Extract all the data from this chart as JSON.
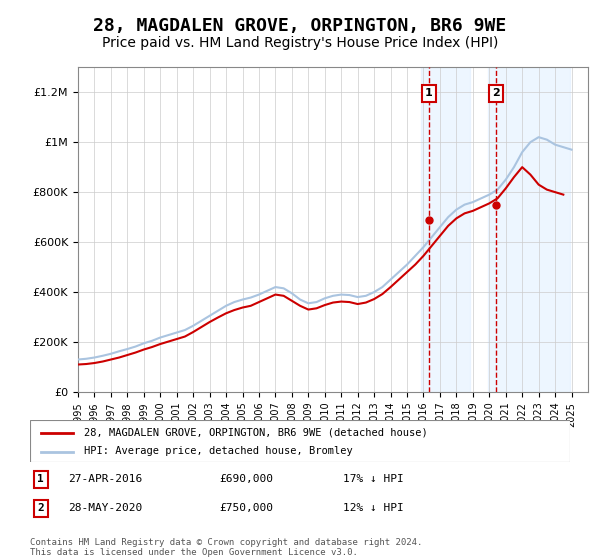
{
  "title": "28, MAGDALEN GROVE, ORPINGTON, BR6 9WE",
  "subtitle": "Price paid vs. HM Land Registry's House Price Index (HPI)",
  "title_fontsize": 13,
  "subtitle_fontsize": 10,
  "ylabel_fontsize": 9,
  "xlabel_fontsize": 8,
  "background_color": "#ffffff",
  "plot_bg_color": "#ffffff",
  "grid_color": "#cccccc",
  "hpi_color": "#aac4e0",
  "price_color": "#cc0000",
  "vline_color": "#cc0000",
  "shade_color": "#ddeeff",
  "ylim": [
    0,
    1300000
  ],
  "xlim_start": 1995,
  "xlim_end": 2026,
  "yticks": [
    0,
    200000,
    400000,
    600000,
    800000,
    1000000,
    1200000
  ],
  "ytick_labels": [
    "£0",
    "£200K",
    "£400K",
    "£600K",
    "£800K",
    "£1M",
    "£1.2M"
  ],
  "xticks": [
    1995,
    1996,
    1997,
    1998,
    1999,
    2000,
    2001,
    2002,
    2003,
    2004,
    2005,
    2006,
    2007,
    2008,
    2009,
    2010,
    2011,
    2012,
    2013,
    2014,
    2015,
    2016,
    2017,
    2018,
    2019,
    2020,
    2021,
    2022,
    2023,
    2024,
    2025
  ],
  "transaction1_x": 2016.32,
  "transaction1_y": 690000,
  "transaction1_label": "1",
  "transaction2_x": 2020.41,
  "transaction2_y": 750000,
  "transaction2_label": "2",
  "legend_line1": "28, MAGDALEN GROVE, ORPINGTON, BR6 9WE (detached house)",
  "legend_line2": "HPI: Average price, detached house, Bromley",
  "table_row1": [
    "1",
    "27-APR-2016",
    "£690,000",
    "17% ↓ HPI"
  ],
  "table_row2": [
    "2",
    "28-MAY-2020",
    "£750,000",
    "12% ↓ HPI"
  ],
  "footnote": "Contains HM Land Registry data © Crown copyright and database right 2024.\nThis data is licensed under the Open Government Licence v3.0.",
  "hpi_years": [
    1995.0,
    1995.5,
    1996.0,
    1996.5,
    1997.0,
    1997.5,
    1998.0,
    1998.5,
    1999.0,
    1999.5,
    2000.0,
    2000.5,
    2001.0,
    2001.5,
    2002.0,
    2002.5,
    2003.0,
    2003.5,
    2004.0,
    2004.5,
    2005.0,
    2005.5,
    2006.0,
    2006.5,
    2007.0,
    2007.5,
    2008.0,
    2008.5,
    2009.0,
    2009.5,
    2010.0,
    2010.5,
    2011.0,
    2011.5,
    2012.0,
    2012.5,
    2013.0,
    2013.5,
    2014.0,
    2014.5,
    2015.0,
    2015.5,
    2016.0,
    2016.5,
    2017.0,
    2017.5,
    2018.0,
    2018.5,
    2019.0,
    2019.5,
    2020.0,
    2020.5,
    2021.0,
    2021.5,
    2022.0,
    2022.5,
    2023.0,
    2023.5,
    2024.0,
    2024.5,
    2025.0
  ],
  "hpi_values": [
    130000,
    133000,
    138000,
    145000,
    153000,
    163000,
    172000,
    182000,
    195000,
    205000,
    218000,
    228000,
    238000,
    248000,
    265000,
    285000,
    305000,
    325000,
    345000,
    360000,
    370000,
    378000,
    390000,
    405000,
    420000,
    415000,
    395000,
    370000,
    355000,
    360000,
    375000,
    385000,
    390000,
    388000,
    380000,
    385000,
    400000,
    420000,
    450000,
    480000,
    510000,
    545000,
    580000,
    620000,
    660000,
    700000,
    730000,
    750000,
    760000,
    775000,
    790000,
    810000,
    850000,
    900000,
    960000,
    1000000,
    1020000,
    1010000,
    990000,
    980000,
    970000
  ],
  "price_years": [
    1995.0,
    1995.5,
    1996.0,
    1996.5,
    1997.0,
    1997.5,
    1998.0,
    1998.5,
    1999.0,
    1999.5,
    2000.0,
    2000.5,
    2001.0,
    2001.5,
    2002.0,
    2002.5,
    2003.0,
    2003.5,
    2004.0,
    2004.5,
    2005.0,
    2005.5,
    2006.0,
    2006.5,
    2007.0,
    2007.5,
    2008.0,
    2008.5,
    2009.0,
    2009.5,
    2010.0,
    2010.5,
    2011.0,
    2011.5,
    2012.0,
    2012.5,
    2013.0,
    2013.5,
    2014.0,
    2014.5,
    2015.0,
    2015.5,
    2016.0,
    2016.5,
    2017.0,
    2017.5,
    2018.0,
    2018.5,
    2019.0,
    2019.5,
    2020.0,
    2020.5,
    2021.0,
    2021.5,
    2022.0,
    2022.5,
    2023.0,
    2023.5,
    2024.0,
    2024.5
  ],
  "price_values": [
    110000,
    112000,
    116000,
    122000,
    130000,
    138000,
    148000,
    158000,
    170000,
    180000,
    192000,
    202000,
    212000,
    222000,
    240000,
    260000,
    280000,
    298000,
    315000,
    328000,
    338000,
    345000,
    360000,
    375000,
    390000,
    385000,
    365000,
    345000,
    330000,
    335000,
    348000,
    358000,
    362000,
    360000,
    352000,
    358000,
    372000,
    392000,
    420000,
    450000,
    480000,
    510000,
    545000,
    585000,
    625000,
    665000,
    695000,
    715000,
    725000,
    740000,
    755000,
    775000,
    815000,
    860000,
    900000,
    870000,
    830000,
    810000,
    800000,
    790000
  ]
}
